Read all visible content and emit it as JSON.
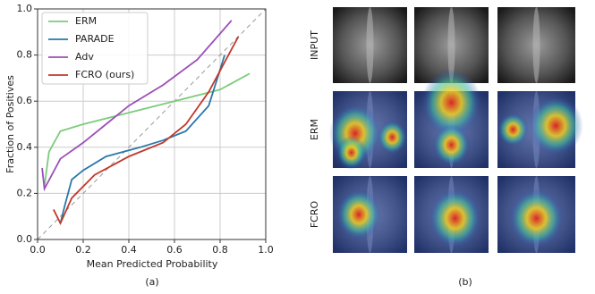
{
  "chart_data": {
    "type": "line",
    "xlabel": "Mean Predicted Probability",
    "ylabel": "Fraction of Positives",
    "caption": "(a)",
    "xlim": [
      0,
      1
    ],
    "ylim": [
      0,
      1
    ],
    "xticks": [
      {
        "value": 0,
        "label": "0.0"
      },
      {
        "value": 0.2,
        "label": "0.2"
      },
      {
        "value": 0.4,
        "label": "0.4"
      },
      {
        "value": 0.6,
        "label": "0.6"
      },
      {
        "value": 0.8,
        "label": "0.8"
      },
      {
        "value": 1,
        "label": "1.0"
      }
    ],
    "yticks": [
      {
        "value": 0,
        "label": "0.0"
      },
      {
        "value": 0.2,
        "label": "0.2"
      },
      {
        "value": 0.4,
        "label": "0.4"
      },
      {
        "value": 0.6,
        "label": "0.6"
      },
      {
        "value": 0.8,
        "label": "0.8"
      },
      {
        "value": 1,
        "label": "1.0"
      }
    ],
    "grid": true,
    "legend": "upper left",
    "series": [
      {
        "name": "ERM",
        "color": "#7ccb7c",
        "x": [
          0.03,
          0.05,
          0.1,
          0.2,
          0.4,
          0.6,
          0.8,
          0.93
        ],
        "values": [
          0.23,
          0.38,
          0.47,
          0.5,
          0.55,
          0.6,
          0.65,
          0.72
        ]
      },
      {
        "name": "PARADE",
        "color": "#2a77a8",
        "x": [
          0.1,
          0.12,
          0.15,
          0.2,
          0.3,
          0.45,
          0.55,
          0.65,
          0.75,
          0.82
        ],
        "values": [
          0.07,
          0.15,
          0.26,
          0.3,
          0.36,
          0.4,
          0.43,
          0.47,
          0.58,
          0.8
        ]
      },
      {
        "name": "Adv",
        "color": "#9b4fb8",
        "x": [
          0.02,
          0.03,
          0.1,
          0.2,
          0.3,
          0.4,
          0.55,
          0.7,
          0.85
        ],
        "values": [
          0.31,
          0.22,
          0.35,
          0.42,
          0.5,
          0.58,
          0.67,
          0.78,
          0.95
        ]
      },
      {
        "name": "FCRO (ours)",
        "color": "#c0392b",
        "x": [
          0.07,
          0.1,
          0.15,
          0.25,
          0.4,
          0.55,
          0.65,
          0.75,
          0.88
        ],
        "values": [
          0.13,
          0.07,
          0.18,
          0.28,
          0.36,
          0.42,
          0.5,
          0.64,
          0.88
        ]
      }
    ]
  },
  "panel_b": {
    "caption": "(b)",
    "rows": [
      "INPUT",
      "ERM",
      "FCRO"
    ]
  }
}
